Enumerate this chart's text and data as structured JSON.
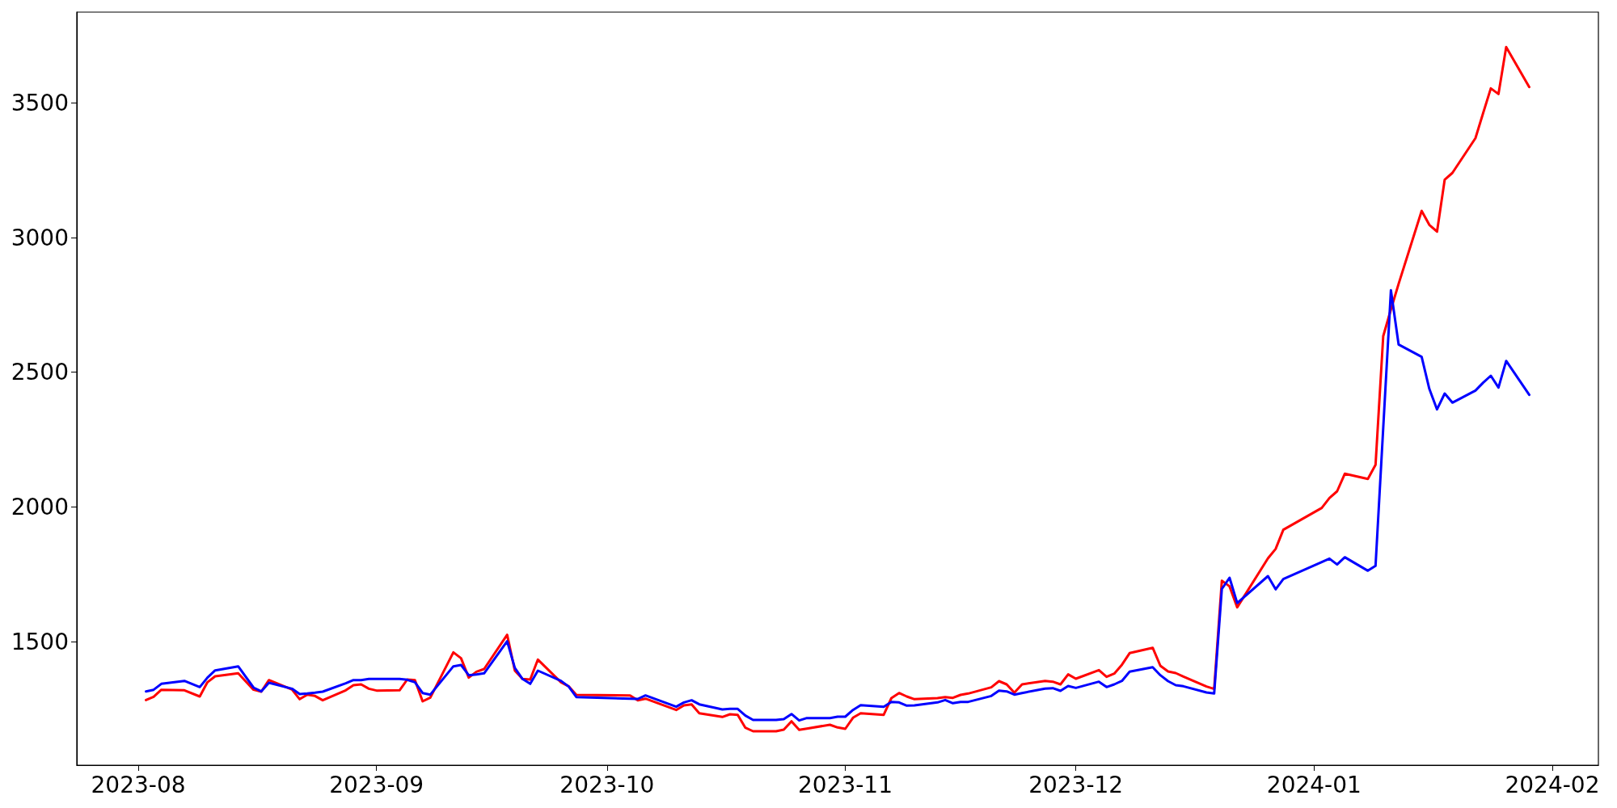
{
  "chart_data": {
    "type": "line",
    "x": [
      "2023-08-02",
      "2023-08-03",
      "2023-08-04",
      "2023-08-07",
      "2023-08-09",
      "2023-08-10",
      "2023-08-11",
      "2023-08-14",
      "2023-08-16",
      "2023-08-17",
      "2023-08-18",
      "2023-08-21",
      "2023-08-22",
      "2023-08-23",
      "2023-08-24",
      "2023-08-25",
      "2023-08-28",
      "2023-08-29",
      "2023-08-30",
      "2023-08-31",
      "2023-09-01",
      "2023-09-04",
      "2023-09-05",
      "2023-09-06",
      "2023-09-07",
      "2023-09-08",
      "2023-09-11",
      "2023-09-12",
      "2023-09-13",
      "2023-09-14",
      "2023-09-15",
      "2023-09-18",
      "2023-09-19",
      "2023-09-20",
      "2023-09-21",
      "2023-09-22",
      "2023-09-25",
      "2023-09-26",
      "2023-09-27",
      "2023-10-04",
      "2023-10-05",
      "2023-10-06",
      "2023-10-10",
      "2023-10-11",
      "2023-10-12",
      "2023-10-13",
      "2023-10-16",
      "2023-10-17",
      "2023-10-18",
      "2023-10-19",
      "2023-10-20",
      "2023-10-23",
      "2023-10-24",
      "2023-10-25",
      "2023-10-26",
      "2023-10-27",
      "2023-10-30",
      "2023-10-31",
      "2023-11-01",
      "2023-11-02",
      "2023-11-03",
      "2023-11-06",
      "2023-11-07",
      "2023-11-08",
      "2023-11-09",
      "2023-11-10",
      "2023-11-13",
      "2023-11-14",
      "2023-11-15",
      "2023-11-16",
      "2023-11-17",
      "2023-11-20",
      "2023-11-21",
      "2023-11-22",
      "2023-11-23",
      "2023-11-24",
      "2023-11-27",
      "2023-11-28",
      "2023-11-29",
      "2023-11-30",
      "2023-12-01",
      "2023-12-04",
      "2023-12-05",
      "2023-12-06",
      "2023-12-07",
      "2023-12-08",
      "2023-12-11",
      "2023-12-12",
      "2023-12-13",
      "2023-12-14",
      "2023-12-15",
      "2023-12-18",
      "2023-12-19",
      "2023-12-20",
      "2023-12-21",
      "2023-12-22",
      "2023-12-26",
      "2023-12-27",
      "2023-12-28",
      "2024-01-02",
      "2024-01-03",
      "2024-01-04",
      "2024-01-05",
      "2024-01-08",
      "2024-01-09",
      "2024-01-10",
      "2024-01-11",
      "2024-01-12",
      "2024-01-15",
      "2024-01-16",
      "2024-01-17",
      "2024-01-18",
      "2024-01-19",
      "2024-01-22",
      "2024-01-23",
      "2024-01-24",
      "2024-01-25",
      "2024-01-26",
      "2024-01-29"
    ],
    "series": [
      {
        "color": "#ff0000",
        "values": [
          1283,
          1295,
          1321,
          1319,
          1296,
          1349,
          1371,
          1382,
          1321,
          1314,
          1357,
          1322,
          1286,
          1303,
          1298,
          1282,
          1319,
          1338,
          1341,
          1325,
          1318,
          1319,
          1359,
          1357,
          1278,
          1292,
          1460,
          1438,
          1366,
          1388,
          1398,
          1525,
          1392,
          1361,
          1359,
          1433,
          1349,
          1334,
          1302,
          1300,
          1282,
          1288,
          1246,
          1263,
          1267,
          1234,
          1220,
          1230,
          1228,
          1180,
          1167,
          1167,
          1173,
          1204,
          1172,
          1177,
          1191,
          1181,
          1176,
          1217,
          1234,
          1228,
          1290,
          1309,
          1296,
          1286,
          1290,
          1294,
          1291,
          1302,
          1307,
          1330,
          1353,
          1341,
          1310,
          1341,
          1354,
          1351,
          1341,
          1378,
          1362,
          1394,
          1369,
          1381,
          1414,
          1457,
          1477,
          1410,
          1389,
          1383,
          1370,
          1333,
          1324,
          1726,
          1705,
          1627,
          1809,
          1844,
          1915,
          1996,
          2033,
          2058,
          2123,
          2104,
          2156,
          2634,
          2733,
          2828,
          3099,
          3047,
          3022,
          3215,
          3240,
          3369,
          3462,
          3554,
          3533,
          3707,
          3559
        ]
      },
      {
        "color": "#0000ff",
        "values": [
          1315,
          1321,
          1343,
          1354,
          1331,
          1366,
          1393,
          1408,
          1329,
          1315,
          1347,
          1325,
          1305,
          1307,
          1310,
          1314,
          1345,
          1357,
          1357,
          1361,
          1361,
          1361,
          1358,
          1349,
          1309,
          1303,
          1408,
          1413,
          1375,
          1378,
          1382,
          1501,
          1402,
          1361,
          1343,
          1392,
          1354,
          1333,
          1294,
          1288,
          1287,
          1300,
          1258,
          1274,
          1282,
          1267,
          1248,
          1250,
          1250,
          1225,
          1209,
          1209,
          1212,
          1231,
          1207,
          1216,
          1216,
          1221,
          1221,
          1246,
          1264,
          1258,
          1276,
          1274,
          1262,
          1263,
          1274,
          1283,
          1271,
          1276,
          1276,
          1298,
          1318,
          1315,
          1303,
          1309,
          1325,
          1327,
          1317,
          1335,
          1328,
          1351,
          1331,
          1341,
          1354,
          1388,
          1405,
          1375,
          1353,
          1338,
          1334,
          1311,
          1307,
          1695,
          1737,
          1643,
          1743,
          1694,
          1732,
          1795,
          1808,
          1786,
          1813,
          1763,
          1781,
          2293,
          2804,
          2603,
          2557,
          2438,
          2362,
          2421,
          2387,
          2432,
          2461,
          2487,
          2443,
          2542,
          2416
        ]
      }
    ],
    "xlim": [
      "2023-07-24",
      "2024-02-07"
    ],
    "xticks": [
      {
        "value": "2023-08-01",
        "label": "2023-08"
      },
      {
        "value": "2023-09-01",
        "label": "2023-09"
      },
      {
        "value": "2023-10-01",
        "label": "2023-10"
      },
      {
        "value": "2023-11-01",
        "label": "2023-11"
      },
      {
        "value": "2023-12-01",
        "label": "2023-12"
      },
      {
        "value": "2024-01-01",
        "label": "2024-01"
      },
      {
        "value": "2024-02-01",
        "label": "2024-02"
      }
    ],
    "ylim": [
      1041,
      3837
    ],
    "yticks": [
      1500,
      2000,
      2500,
      3000,
      3500
    ],
    "grid": false,
    "marker": "none",
    "line_style": "solid"
  }
}
